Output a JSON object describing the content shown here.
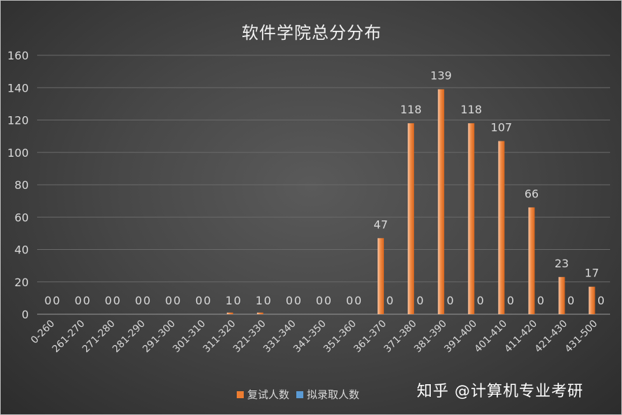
{
  "chart_data": {
    "type": "bar",
    "title": "软件学院总分分布",
    "xlabel": "",
    "ylabel": "",
    "ylim": [
      0,
      160
    ],
    "yticks": [
      0,
      20,
      40,
      60,
      80,
      100,
      120,
      140,
      160
    ],
    "grid": true,
    "legend_position": "bottom",
    "categories": [
      "0-260",
      "261-270",
      "271-280",
      "281-290",
      "291-300",
      "301-310",
      "311-320",
      "321-330",
      "331-340",
      "341-350",
      "351-360",
      "361-370",
      "371-380",
      "381-390",
      "391-400",
      "401-410",
      "411-420",
      "421-430",
      "431-500"
    ],
    "series": [
      {
        "name": "复试人数",
        "color": "#ed7d31",
        "values": [
          0,
          0,
          0,
          0,
          0,
          0,
          1,
          1,
          0,
          0,
          0,
          47,
          118,
          139,
          118,
          107,
          66,
          23,
          17
        ]
      },
      {
        "name": "拟录取人数",
        "color": "#5b9bd5",
        "values": [
          0,
          0,
          0,
          0,
          0,
          0,
          0,
          0,
          0,
          0,
          0,
          0,
          0,
          0,
          0,
          0,
          0,
          0,
          0
        ]
      }
    ]
  },
  "watermark": "知乎 @计算机专业考研"
}
